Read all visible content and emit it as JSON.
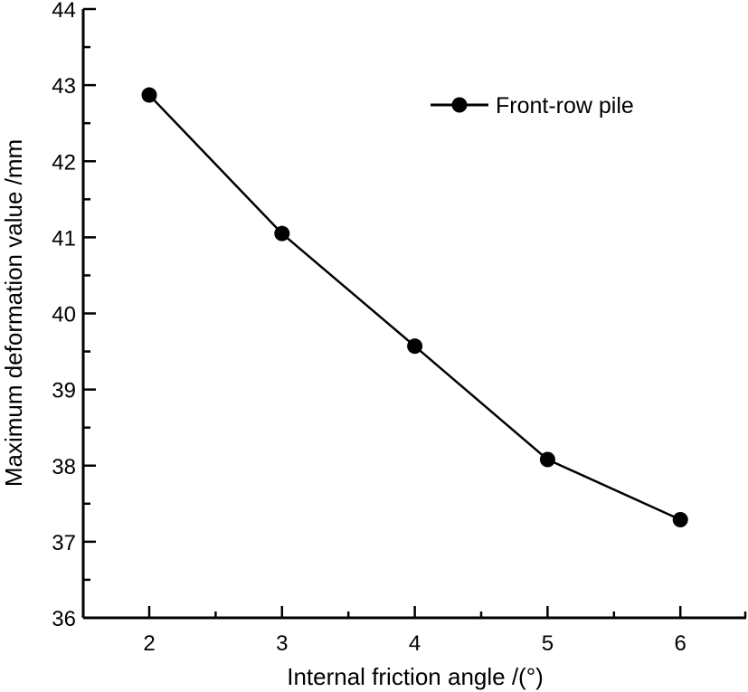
{
  "chart_data": {
    "type": "line",
    "title": "",
    "xlabel": "Internal friction angle /(°)",
    "ylabel": "Maximum deformation value /mm",
    "x": [
      2,
      3,
      4,
      5,
      6
    ],
    "series": [
      {
        "name": "Front-row pile",
        "marker": "filled-circle",
        "color": "#000000",
        "values": [
          42.87,
          41.05,
          39.57,
          38.08,
          37.29
        ]
      }
    ],
    "xlim": [
      1.5,
      6.5
    ],
    "ylim": [
      36,
      44
    ],
    "x_ticks": [
      2,
      3,
      4,
      5,
      6
    ],
    "x_minor_ticks": [
      2.5,
      3.5,
      4.5,
      5.5,
      6.5
    ],
    "y_ticks": [
      36,
      37,
      38,
      39,
      40,
      41,
      42,
      43,
      44
    ],
    "y_minor_step": 0.5,
    "grid": false,
    "legend_position": "upper-right-inside"
  },
  "legend": {
    "items": [
      {
        "label": "Front-row pile"
      }
    ]
  }
}
